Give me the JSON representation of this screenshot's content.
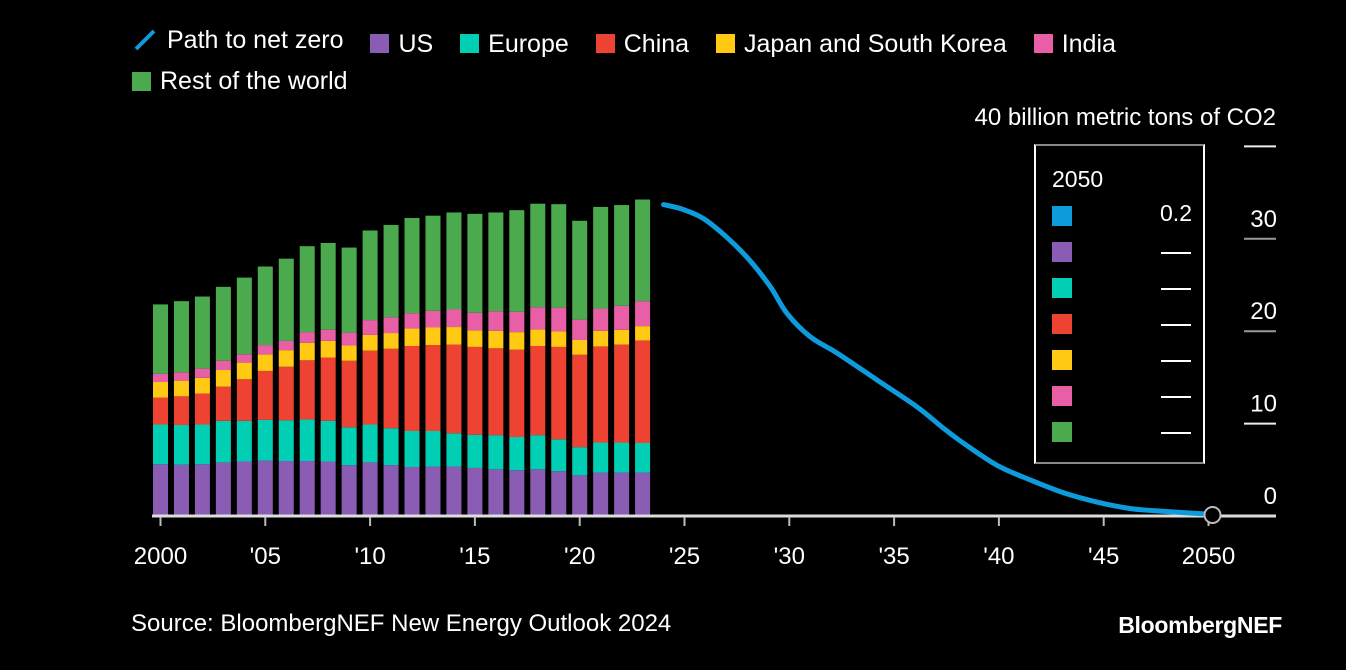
{
  "chart_data": {
    "type": "bar",
    "subtype": "stacked-bar-with-line",
    "title": "",
    "ylabel": "billion metric tons of CO2",
    "y_unit_label": "40 billion metric tons of CO2",
    "ylim": [
      0,
      40
    ],
    "y_ticks": [
      0,
      10,
      20,
      30,
      40
    ],
    "y_tick_labels": [
      "0",
      "10",
      "20",
      "30",
      "40 billion metric tons of CO2"
    ],
    "xlim": [
      2000,
      2050
    ],
    "x_ticks": [
      2000,
      2005,
      2010,
      2015,
      2020,
      2025,
      2030,
      2035,
      2040,
      2045,
      2050
    ],
    "x_tick_labels": [
      "2000",
      "'05",
      "'10",
      "'15",
      "'20",
      "'25",
      "'30",
      "'35",
      "'40",
      "'45",
      "2050"
    ],
    "grid": false,
    "legend_position": "top-left",
    "categories": [
      2000,
      2001,
      2002,
      2003,
      2004,
      2005,
      2006,
      2007,
      2008,
      2009,
      2010,
      2011,
      2012,
      2013,
      2014,
      2015,
      2016,
      2017,
      2018,
      2019,
      2020,
      2021,
      2022,
      2023
    ],
    "series": [
      {
        "name": "US",
        "color": "#8a5cb4",
        "values": [
          5.6,
          5.55,
          5.6,
          5.8,
          5.9,
          6.0,
          5.95,
          5.95,
          5.9,
          5.5,
          5.8,
          5.5,
          5.3,
          5.35,
          5.35,
          5.2,
          5.05,
          4.95,
          5.05,
          4.85,
          4.4,
          4.7,
          4.7,
          4.7
        ]
      },
      {
        "name": "Europe",
        "color": "#00cfb4",
        "values": [
          4.3,
          4.3,
          4.3,
          4.5,
          4.4,
          4.4,
          4.4,
          4.5,
          4.4,
          4.1,
          4.1,
          4.0,
          3.9,
          3.85,
          3.6,
          3.6,
          3.7,
          3.6,
          3.7,
          3.45,
          3.05,
          3.25,
          3.25,
          3.2
        ]
      },
      {
        "name": "China",
        "color": "#ee4233",
        "values": [
          2.9,
          3.1,
          3.35,
          3.7,
          4.5,
          5.3,
          5.8,
          6.4,
          6.85,
          7.2,
          8.0,
          8.6,
          9.2,
          9.3,
          9.6,
          9.5,
          9.4,
          9.45,
          9.65,
          10.0,
          10.0,
          10.4,
          10.6,
          11.1
        ]
      },
      {
        "name": "Japan and South Korea",
        "color": "#ffc914",
        "values": [
          1.7,
          1.7,
          1.7,
          1.8,
          1.8,
          1.8,
          1.8,
          1.9,
          1.8,
          1.65,
          1.7,
          1.7,
          1.9,
          1.9,
          1.9,
          1.8,
          1.9,
          1.9,
          1.8,
          1.7,
          1.6,
          1.7,
          1.6,
          1.55
        ]
      },
      {
        "name": "India",
        "color": "#e85fa7",
        "values": [
          0.9,
          0.9,
          1.0,
          1.0,
          0.9,
          1.0,
          1.0,
          1.15,
          1.2,
          1.4,
          1.6,
          1.7,
          1.65,
          1.8,
          1.9,
          1.9,
          2.1,
          2.2,
          2.4,
          2.55,
          2.2,
          2.4,
          2.6,
          2.7
        ]
      },
      {
        "name": "Rest of the world",
        "color": "#4caa4e",
        "values": [
          7.5,
          7.7,
          7.8,
          8.0,
          8.3,
          8.5,
          8.9,
          9.3,
          9.4,
          9.2,
          9.7,
          10.0,
          10.3,
          10.3,
          10.5,
          10.7,
          10.7,
          11.0,
          11.2,
          11.2,
          10.7,
          11.0,
          10.9,
          11.0
        ]
      }
    ],
    "line": {
      "name": "Path to net zero",
      "color": "#0e9bdc",
      "points": [
        [
          2024.0,
          33.7
        ],
        [
          2024.9,
          33.2
        ],
        [
          2025.9,
          32.2
        ],
        [
          2027.0,
          30.2
        ],
        [
          2028.1,
          27.7
        ],
        [
          2029.1,
          24.8
        ],
        [
          2029.9,
          21.9
        ],
        [
          2031.0,
          19.4
        ],
        [
          2032.3,
          17.6
        ],
        [
          2034.2,
          14.7
        ],
        [
          2036.1,
          11.8
        ],
        [
          2037.3,
          9.6
        ],
        [
          2038.3,
          7.9
        ],
        [
          2039.9,
          5.5
        ],
        [
          2041.5,
          3.9
        ],
        [
          2043.1,
          2.5
        ],
        [
          2044.7,
          1.5
        ],
        [
          2046.3,
          0.8
        ],
        [
          2047.9,
          0.5
        ],
        [
          2050.0,
          0.2
        ]
      ],
      "end_marker": "circle"
    },
    "inset_2050": {
      "title": "2050",
      "rows": [
        {
          "name": "Path to net zero",
          "color": "#0e9bdc",
          "value": "0.2"
        },
        {
          "name": "US",
          "color": "#8a5cb4",
          "value": "—"
        },
        {
          "name": "Europe",
          "color": "#00cfb4",
          "value": "—"
        },
        {
          "name": "China",
          "color": "#ee4233",
          "value": "—"
        },
        {
          "name": "Japan and South Korea",
          "color": "#ffc914",
          "value": "—"
        },
        {
          "name": "India",
          "color": "#e85fa7",
          "value": "—"
        },
        {
          "name": "Rest of the world",
          "color": "#4caa4e",
          "value": "—"
        }
      ]
    }
  },
  "legend": {
    "items": [
      {
        "label": "Path to net zero",
        "color": "#0e9bdc",
        "kind": "line"
      },
      {
        "label": "US",
        "color": "#8a5cb4",
        "kind": "box"
      },
      {
        "label": "Europe",
        "color": "#00cfb4",
        "kind": "box"
      },
      {
        "label": "China",
        "color": "#ee4233",
        "kind": "box"
      },
      {
        "label": "Japan and South Korea",
        "color": "#ffc914",
        "kind": "box"
      },
      {
        "label": "India",
        "color": "#e85fa7",
        "kind": "box"
      },
      {
        "label": "Rest of the world",
        "color": "#4caa4e",
        "kind": "box"
      }
    ]
  },
  "footer": {
    "source": "Source: BloombergNEF New Energy Outlook 2024",
    "brand": "BloombergNEF"
  }
}
